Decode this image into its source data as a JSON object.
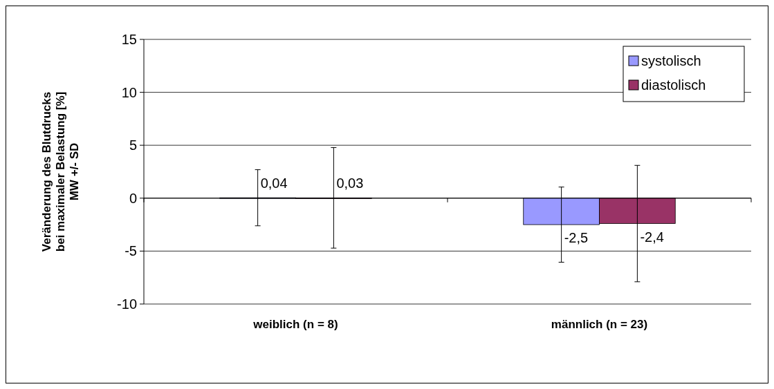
{
  "chart_data": {
    "type": "bar",
    "categories": [
      "weiblich (n = 8)",
      "männlich (n = 23)"
    ],
    "ylabel": "Veränderung des Blutdrucks\nbei maximaler Belastung [%]\nMW +/- SD",
    "ylim": [
      -10,
      15
    ],
    "yticks": [
      -10,
      -5,
      0,
      5,
      10,
      15
    ],
    "grid": "y",
    "legend": "top right",
    "series": [
      {
        "name": "systolisch",
        "color": "#9999ff",
        "values": [
          0.04,
          -2.5
        ],
        "errors": [
          2.65,
          3.55
        ],
        "value_labels": [
          "0,04",
          "-2,5"
        ]
      },
      {
        "name": "diastolisch",
        "color": "#993366",
        "values": [
          0.03,
          -2.4
        ],
        "errors": [
          4.75,
          5.5
        ],
        "value_labels": [
          "0,03",
          "-2,4"
        ]
      }
    ]
  }
}
